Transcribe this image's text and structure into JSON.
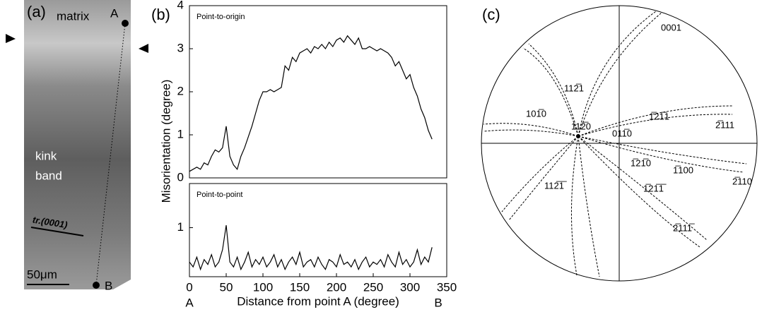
{
  "panel_a": {
    "label": "(a)",
    "matrix": "matrix",
    "point_a": "A",
    "kink": "kink",
    "band": "band",
    "trace": "tr.(0001)",
    "scale": "50μm",
    "point_b": "B"
  },
  "panel_b": {
    "label": "(b)"
  },
  "chart_data": [
    {
      "type": "line",
      "title": "Point-to-origin",
      "ylabel": "Misorientation (degree)",
      "xlim": [
        0,
        350
      ],
      "ylim": [
        0,
        4
      ],
      "yticks": [
        0,
        1,
        2,
        3,
        4
      ],
      "x": [
        0,
        5,
        10,
        15,
        20,
        25,
        30,
        35,
        40,
        45,
        50,
        55,
        60,
        65,
        70,
        75,
        80,
        85,
        90,
        95,
        100,
        105,
        110,
        115,
        120,
        125,
        130,
        135,
        140,
        145,
        150,
        155,
        160,
        165,
        170,
        175,
        180,
        185,
        190,
        195,
        200,
        205,
        210,
        215,
        220,
        225,
        230,
        235,
        240,
        245,
        250,
        255,
        260,
        265,
        270,
        275,
        280,
        285,
        290,
        295,
        300,
        305,
        310,
        315,
        320,
        325,
        330
      ],
      "series": [
        {
          "color": "#000000",
          "values": [
            0.15,
            0.2,
            0.25,
            0.2,
            0.35,
            0.3,
            0.5,
            0.65,
            0.6,
            0.7,
            1.2,
            0.5,
            0.3,
            0.2,
            0.5,
            0.7,
            0.95,
            1.2,
            1.5,
            1.8,
            2.0,
            2.0,
            2.05,
            2.0,
            2.05,
            2.1,
            2.6,
            2.5,
            2.8,
            2.7,
            2.9,
            2.95,
            3.0,
            2.9,
            3.05,
            3.0,
            3.1,
            3.0,
            3.15,
            3.05,
            3.2,
            3.25,
            3.15,
            3.3,
            3.2,
            3.1,
            3.25,
            3.0,
            3.0,
            3.05,
            3.0,
            2.95,
            3.0,
            2.95,
            2.9,
            2.8,
            2.6,
            2.7,
            2.5,
            2.3,
            2.4,
            2.1,
            1.9,
            1.6,
            1.4,
            1.1,
            0.9
          ]
        }
      ]
    },
    {
      "type": "line",
      "title": "Point-to-point",
      "xlabel": "Distance from point A (degree)",
      "annotations": [
        "A",
        "B"
      ],
      "xlim": [
        0,
        350
      ],
      "xticks": [
        0,
        50,
        100,
        150,
        200,
        250,
        300,
        350
      ],
      "ylim": [
        0,
        1.9
      ],
      "yticks": [
        1
      ],
      "x": [
        0,
        5,
        10,
        15,
        20,
        25,
        30,
        35,
        40,
        45,
        50,
        55,
        60,
        65,
        70,
        75,
        80,
        85,
        90,
        95,
        100,
        105,
        110,
        115,
        120,
        125,
        130,
        135,
        140,
        145,
        150,
        155,
        160,
        165,
        170,
        175,
        180,
        185,
        190,
        195,
        200,
        205,
        210,
        215,
        220,
        225,
        230,
        235,
        240,
        245,
        250,
        255,
        260,
        265,
        270,
        275,
        280,
        285,
        290,
        295,
        300,
        305,
        310,
        315,
        320,
        325,
        330
      ],
      "series": [
        {
          "color": "#000000",
          "values": [
            0.3,
            0.2,
            0.4,
            0.15,
            0.35,
            0.25,
            0.45,
            0.2,
            0.3,
            0.55,
            1.05,
            0.3,
            0.2,
            0.4,
            0.15,
            0.3,
            0.5,
            0.2,
            0.35,
            0.25,
            0.4,
            0.2,
            0.3,
            0.45,
            0.2,
            0.35,
            0.15,
            0.3,
            0.4,
            0.25,
            0.5,
            0.2,
            0.3,
            0.35,
            0.2,
            0.4,
            0.25,
            0.15,
            0.35,
            0.3,
            0.2,
            0.45,
            0.25,
            0.3,
            0.2,
            0.35,
            0.15,
            0.3,
            0.4,
            0.2,
            0.3,
            0.25,
            0.35,
            0.2,
            0.45,
            0.3,
            0.2,
            0.5,
            0.25,
            0.35,
            0.2,
            0.3,
            0.55,
            0.25,
            0.4,
            0.3,
            0.6
          ]
        }
      ]
    }
  ],
  "panel_c": {
    "label": "(c)",
    "poles": [
      "0001",
      "112̅1",
      "2̅111",
      "1̅21̅1",
      "101̅0",
      "112̅0",
      "011̅0",
      "1̅21̅0",
      "1̅100",
      "2̅110",
      "112̅1̅",
      "1̅21̅1̅",
      "2̅111̅"
    ]
  }
}
